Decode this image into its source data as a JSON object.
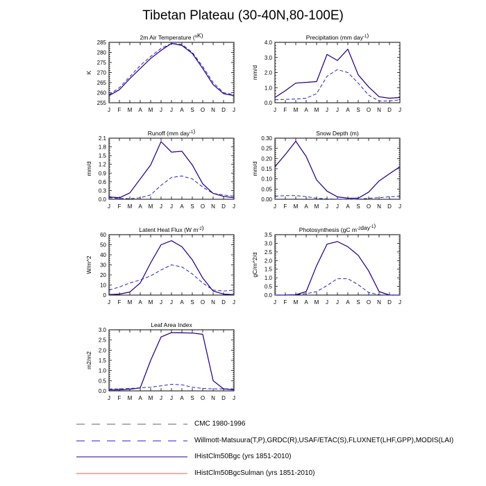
{
  "page": {
    "title": "Tibetan Plateau (30-40N,80-100E)"
  },
  "month_ticks": [
    "J",
    "F",
    "M",
    "A",
    "M",
    "J",
    "J",
    "A",
    "S",
    "O",
    "N",
    "D",
    "J"
  ],
  "colors": {
    "cmc": "#606060",
    "obs": "#2222cc",
    "bgc": "#22008a",
    "sulman": "#ff5555"
  },
  "chart_data": [
    {
      "type": "line",
      "title": "2m Air Temperature (°K)",
      "ylabel": "K",
      "ylim": [
        255,
        285
      ],
      "yticks": [
        "255",
        "260",
        "265",
        "270",
        "275",
        "280",
        "285"
      ],
      "series": [
        {
          "values": [
            258.5,
            261.5,
            267,
            272,
            277,
            281,
            284.5,
            283.5,
            279.5,
            272,
            264,
            259.5,
            258.5
          ],
          "style": "solid"
        },
        {
          "values": [
            259,
            262.5,
            268,
            273.5,
            278,
            282,
            284.5,
            284,
            280,
            273,
            265,
            260,
            259
          ],
          "style": "dashed"
        }
      ]
    },
    {
      "type": "line",
      "title": "Precipitation (mm day-1)",
      "ylabel": "mm/d",
      "ylim": [
        0,
        4
      ],
      "yticks": [
        "0.0",
        "1.0",
        "2.0",
        "3.0",
        "4.0"
      ],
      "series": [
        {
          "values": [
            0.35,
            0.8,
            1.3,
            1.35,
            1.4,
            3.2,
            2.8,
            3.55,
            1.85,
            1.05,
            0.4,
            0.3,
            0.35
          ],
          "style": "solid"
        },
        {
          "values": [
            0.2,
            0.22,
            0.25,
            0.3,
            0.6,
            1.75,
            2.2,
            2.0,
            1.3,
            0.5,
            0.12,
            0.12,
            0.2
          ],
          "style": "dashed"
        }
      ]
    },
    {
      "type": "line",
      "title": "Runoff (mm day-1)",
      "ylabel": "mm/d",
      "ylim": [
        0,
        2.1
      ],
      "yticks": [
        "0.0",
        "0.3",
        "0.6",
        "0.9",
        "1.2",
        "1.5",
        "1.8",
        "2.1"
      ],
      "series": [
        {
          "values": [
            0.08,
            0.05,
            0.22,
            0.7,
            1.18,
            1.98,
            1.62,
            1.65,
            1.18,
            0.53,
            0.2,
            0.1,
            0.05
          ],
          "style": "solid"
        },
        {
          "values": [
            0.05,
            0.03,
            0.02,
            0.05,
            0.15,
            0.48,
            0.75,
            0.8,
            0.7,
            0.42,
            0.2,
            0.15,
            0.1
          ],
          "style": "dashed"
        }
      ]
    },
    {
      "type": "line",
      "title": "Snow Depth (m)",
      "ylabel": "mm/d",
      "ylim": [
        0,
        0.3
      ],
      "yticks": [
        "0.00",
        "0.05",
        "0.10",
        "0.15",
        "0.20",
        "0.25",
        "0.30"
      ],
      "series": [
        {
          "values": [
            0.16,
            0.22,
            0.285,
            0.21,
            0.095,
            0.04,
            0.012,
            0.005,
            0.005,
            0.035,
            0.09,
            0.125,
            0.16
          ],
          "style": "solid"
        },
        {
          "values": [
            0.015,
            0.018,
            0.018,
            0.013,
            0.005,
            0.002,
            0.0,
            0.0,
            0.0,
            0.005,
            0.008,
            0.012,
            0.015
          ],
          "style": "dashed"
        }
      ]
    },
    {
      "type": "line",
      "title": "Latent Heat Flux (W m-2)",
      "ylabel": "W/m^2",
      "ylim": [
        0,
        60
      ],
      "yticks": [
        "0",
        "10",
        "20",
        "30",
        "40",
        "50",
        "60"
      ],
      "series": [
        {
          "values": [
            0.5,
            1,
            3,
            12,
            32,
            50,
            54,
            48,
            35,
            17,
            4,
            1,
            0.5
          ],
          "style": "solid"
        },
        {
          "values": [
            5,
            8,
            12,
            15,
            19,
            25,
            30,
            28,
            21,
            12,
            5,
            4,
            5
          ],
          "style": "dashed"
        }
      ]
    },
    {
      "type": "line",
      "title": "Photosynthesis (gC m-2day-1)",
      "ylabel": "gC/m^2/d",
      "ylim": [
        0,
        3.5
      ],
      "yticks": [
        "0.0",
        "0.5",
        "1.0",
        "1.5",
        "2.0",
        "2.5",
        "3.0",
        "3.5"
      ],
      "series": [
        {
          "values": [
            0,
            0,
            0.02,
            0.2,
            1.7,
            2.95,
            3.1,
            2.8,
            2.3,
            1.4,
            0.2,
            0,
            0
          ],
          "style": "solid"
        },
        {
          "values": [
            0,
            0,
            0.02,
            0.08,
            0.2,
            0.55,
            0.95,
            0.95,
            0.6,
            0.15,
            0.02,
            0,
            0
          ],
          "style": "dashed"
        }
      ]
    },
    {
      "type": "line",
      "title": "Leaf Area Index",
      "ylabel": "m2/m2",
      "ylim": [
        0,
        3.0
      ],
      "yticks": [
        "0.0",
        "0.5",
        "1.0",
        "1.5",
        "2.0",
        "2.5",
        "3.0"
      ],
      "series": [
        {
          "values": [
            0.05,
            0.05,
            0.08,
            0.15,
            1.5,
            2.65,
            2.86,
            2.85,
            2.84,
            2.78,
            0.5,
            0.1,
            0.05
          ],
          "style": "solid"
        },
        {
          "values": [
            0.1,
            0.1,
            0.12,
            0.15,
            0.18,
            0.25,
            0.32,
            0.3,
            0.18,
            0.12,
            0.1,
            0.1,
            0.1
          ],
          "style": "dashed"
        }
      ]
    }
  ],
  "legend": [
    {
      "label": "CMC 1980-1996",
      "style": "dashed",
      "color_key": "cmc"
    },
    {
      "label": "Willmott-Matsuura(T,P),GRDC(R),USAF/ETAC(S),FLUXNET(LHF,GPP),MODIS(LAI)",
      "style": "dashed",
      "color_key": "obs"
    },
    {
      "label": "IHistClm50Bgc (yrs 1851-2010)",
      "style": "solid",
      "color_key": "bgc"
    },
    {
      "label": "IHistClm50BgcSulman (yrs 1851-2010)",
      "style": "solid",
      "color_key": "sulman"
    }
  ]
}
